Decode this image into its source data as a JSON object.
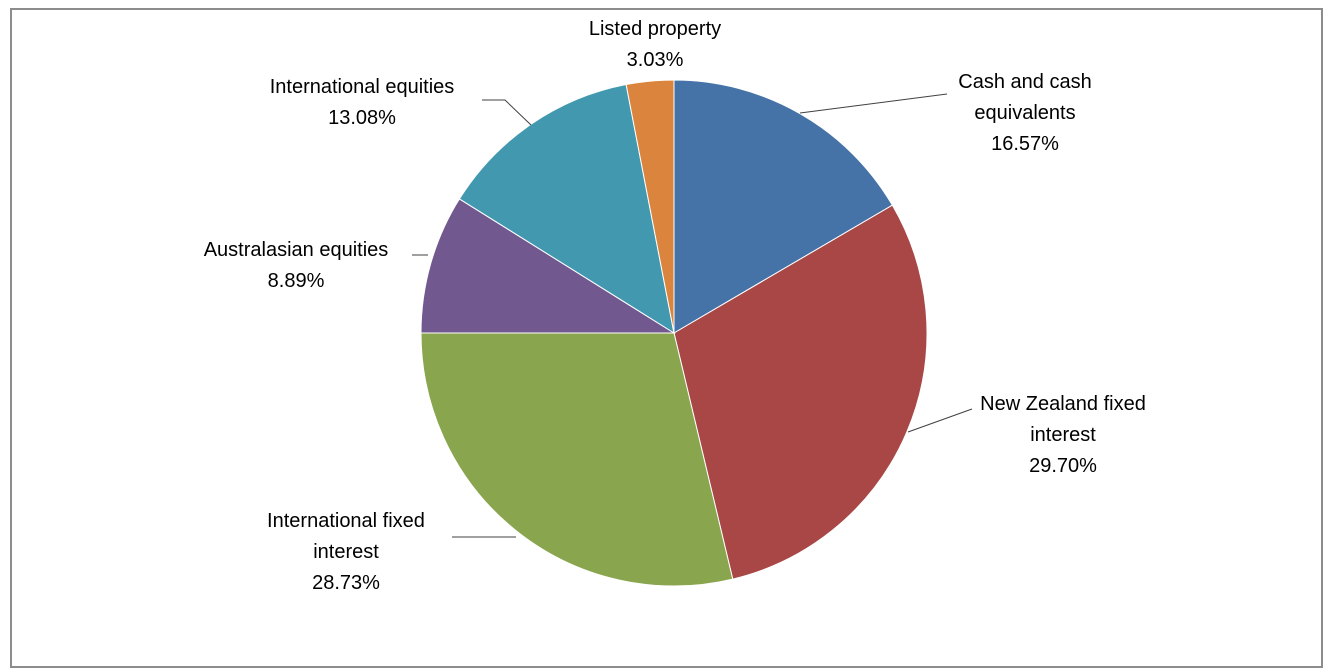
{
  "chart_data": {
    "type": "pie",
    "title": "",
    "start_angle_deg": 0,
    "direction": "clockwise",
    "legend": "none",
    "slices": [
      {
        "label_lines": [
          "Cash and cash",
          "equivalents"
        ],
        "value": 16.57,
        "value_label": "16.57%",
        "color": "#4572A7"
      },
      {
        "label_lines": [
          "New Zealand fixed",
          "interest"
        ],
        "value": 29.7,
        "value_label": "29.70%",
        "color": "#A84746"
      },
      {
        "label_lines": [
          "International fixed",
          "interest"
        ],
        "value": 28.73,
        "value_label": "28.73%",
        "color": "#89A54E"
      },
      {
        "label_lines": [
          "Australasian equities"
        ],
        "value": 8.89,
        "value_label": "8.89%",
        "color": "#71588F"
      },
      {
        "label_lines": [
          "International equities"
        ],
        "value": 13.08,
        "value_label": "13.08%",
        "color": "#4198AF"
      },
      {
        "label_lines": [
          "Listed property"
        ],
        "value": 3.03,
        "value_label": "3.03%",
        "color": "#DB843D"
      }
    ]
  }
}
